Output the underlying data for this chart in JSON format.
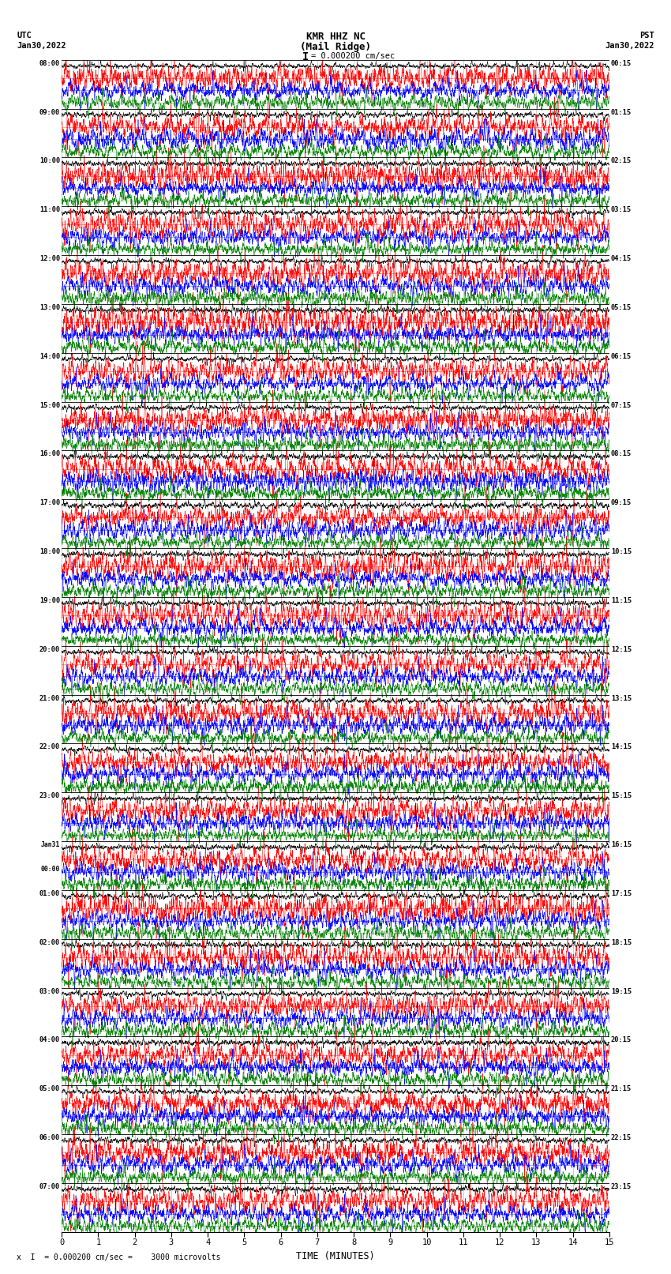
{
  "title_line1": "KMR HHZ NC",
  "title_line2": "(Mail Ridge)",
  "scale_text": "= 0.000200 cm/sec",
  "left_label": "UTC",
  "left_date": "Jan30,2022",
  "right_label": "PST",
  "right_date": "Jan30,2022",
  "bottom_label": "TIME (MINUTES)",
  "footer_text": "= 0.000200 cm/sec =    3000 microvolts",
  "xmin": 0,
  "xmax": 15,
  "figsize": [
    8.5,
    16.13
  ],
  "dpi": 100,
  "bg_color": "#ffffff",
  "trace_colors": [
    "black",
    "red",
    "blue",
    "green"
  ],
  "left_times": [
    "08:00",
    "09:00",
    "10:00",
    "11:00",
    "12:00",
    "13:00",
    "14:00",
    "15:00",
    "16:00",
    "17:00",
    "18:00",
    "19:00",
    "20:00",
    "21:00",
    "22:00",
    "23:00",
    "Jan31\n00:00",
    "01:00",
    "02:00",
    "03:00",
    "04:00",
    "05:00",
    "06:00",
    "07:00"
  ],
  "right_times": [
    "00:15",
    "01:15",
    "02:15",
    "03:15",
    "04:15",
    "05:15",
    "06:15",
    "07:15",
    "08:15",
    "09:15",
    "10:15",
    "11:15",
    "12:15",
    "13:15",
    "14:15",
    "15:15",
    "16:15",
    "17:15",
    "18:15",
    "19:15",
    "20:15",
    "21:15",
    "22:15",
    "23:15"
  ],
  "n_rows": 24,
  "traces_per_row": 4,
  "noise_amplitudes": [
    0.08,
    0.18,
    0.15,
    0.13
  ],
  "xticks": [
    0,
    1,
    2,
    3,
    4,
    5,
    6,
    7,
    8,
    9,
    10,
    11,
    12,
    13,
    14,
    15
  ]
}
